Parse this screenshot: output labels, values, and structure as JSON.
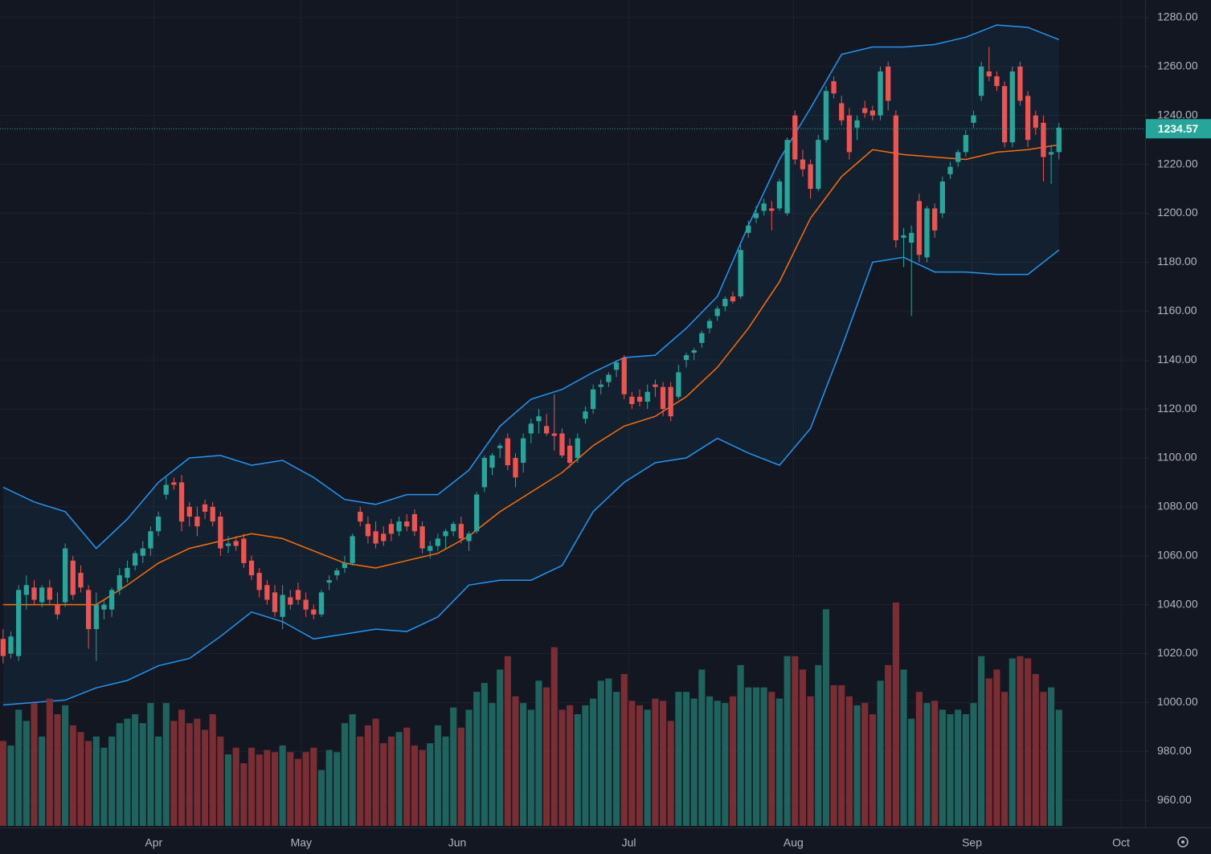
{
  "chart_data": {
    "type": "candlestick",
    "candles": [
      [
        1026,
        1030,
        1016,
        1019
      ],
      [
        1020,
        1029,
        1018,
        1027
      ],
      [
        1019,
        1048,
        1017,
        1046
      ],
      [
        1044,
        1052,
        1038,
        1048
      ],
      [
        1047,
        1050,
        1040,
        1042
      ],
      [
        1041,
        1048,
        1039,
        1047
      ],
      [
        1047,
        1050,
        1040,
        1042
      ],
      [
        1040,
        1045,
        1034,
        1036
      ],
      [
        1041,
        1065,
        1039,
        1063
      ],
      [
        1058,
        1060,
        1042,
        1044
      ],
      [
        1053,
        1056,
        1045,
        1047
      ],
      [
        1046,
        1048,
        1022,
        1030
      ],
      [
        1030,
        1045,
        1017,
        1040
      ],
      [
        1038,
        1042,
        1034,
        1040
      ],
      [
        1038,
        1047,
        1035,
        1046
      ],
      [
        1046,
        1055,
        1044,
        1052
      ],
      [
        1051,
        1058,
        1049,
        1055
      ],
      [
        1056,
        1062,
        1054,
        1061
      ],
      [
        1060,
        1066,
        1057,
        1063
      ],
      [
        1063,
        1072,
        1060,
        1070
      ],
      [
        1070,
        1078,
        1068,
        1076
      ],
      [
        1085,
        1092,
        1083,
        1089
      ],
      [
        1090,
        1092,
        1087,
        1089
      ],
      [
        1090,
        1093,
        1070,
        1074
      ],
      [
        1080,
        1082,
        1072,
        1076
      ],
      [
        1076,
        1080,
        1068,
        1072
      ],
      [
        1081,
        1083,
        1075,
        1078
      ],
      [
        1080,
        1082,
        1072,
        1074
      ],
      [
        1076,
        1078,
        1060,
        1063
      ],
      [
        1064,
        1068,
        1061,
        1065
      ],
      [
        1066,
        1068,
        1062,
        1064
      ],
      [
        1067,
        1069,
        1055,
        1057
      ],
      [
        1058,
        1060,
        1050,
        1052
      ],
      [
        1053,
        1055,
        1043,
        1046
      ],
      [
        1048,
        1050,
        1040,
        1042
      ],
      [
        1045,
        1048,
        1035,
        1037
      ],
      [
        1035,
        1048,
        1030,
        1044
      ],
      [
        1043,
        1046,
        1038,
        1040
      ],
      [
        1046,
        1049,
        1040,
        1042
      ],
      [
        1042,
        1045,
        1035,
        1038
      ],
      [
        1038,
        1040,
        1034,
        1036
      ],
      [
        1036,
        1046,
        1035,
        1045
      ],
      [
        1049,
        1052,
        1046,
        1050
      ],
      [
        1052,
        1055,
        1050,
        1054
      ],
      [
        1055,
        1060,
        1053,
        1057
      ],
      [
        1057,
        1069,
        1056,
        1068
      ],
      [
        1078,
        1080,
        1072,
        1074
      ],
      [
        1073,
        1076,
        1065,
        1068
      ],
      [
        1070,
        1074,
        1063,
        1065
      ],
      [
        1069,
        1072,
        1064,
        1066
      ],
      [
        1073,
        1075,
        1066,
        1069
      ],
      [
        1070,
        1076,
        1068,
        1074
      ],
      [
        1074,
        1077,
        1070,
        1072
      ],
      [
        1077,
        1079,
        1068,
        1070
      ],
      [
        1072,
        1074,
        1061,
        1063
      ],
      [
        1062,
        1066,
        1059,
        1064
      ],
      [
        1064,
        1069,
        1062,
        1067
      ],
      [
        1068,
        1071,
        1063,
        1070
      ],
      [
        1070,
        1074,
        1068,
        1073
      ],
      [
        1073,
        1076,
        1065,
        1067
      ],
      [
        1066,
        1070,
        1062,
        1069
      ],
      [
        1070,
        1086,
        1069,
        1085
      ],
      [
        1088,
        1101,
        1086,
        1100
      ],
      [
        1096,
        1102,
        1093,
        1101
      ],
      [
        1104,
        1106,
        1100,
        1105
      ],
      [
        1108,
        1110,
        1095,
        1097
      ],
      [
        1100,
        1102,
        1088,
        1092
      ],
      [
        1098,
        1110,
        1094,
        1108
      ],
      [
        1110,
        1116,
        1106,
        1114
      ],
      [
        1115,
        1120,
        1110,
        1117
      ],
      [
        1113,
        1118,
        1109,
        1110
      ],
      [
        1110,
        1126,
        1103,
        1109
      ],
      [
        1110,
        1112,
        1100,
        1101
      ],
      [
        1105,
        1108,
        1096,
        1098
      ],
      [
        1100,
        1110,
        1098,
        1108
      ],
      [
        1116,
        1121,
        1114,
        1119
      ],
      [
        1120,
        1130,
        1118,
        1128
      ],
      [
        1129,
        1132,
        1126,
        1130
      ],
      [
        1131,
        1135,
        1129,
        1134
      ],
      [
        1136,
        1140,
        1133,
        1139
      ],
      [
        1141,
        1142,
        1124,
        1126
      ],
      [
        1125,
        1127,
        1120,
        1122
      ],
      [
        1125,
        1128,
        1121,
        1123
      ],
      [
        1123,
        1130,
        1120,
        1127
      ],
      [
        1130,
        1132,
        1125,
        1129
      ],
      [
        1129,
        1131,
        1117,
        1120
      ],
      [
        1129,
        1131,
        1115,
        1117
      ],
      [
        1125,
        1138,
        1124,
        1135
      ],
      [
        1140,
        1143,
        1137,
        1142
      ],
      [
        1143,
        1145,
        1140,
        1144
      ],
      [
        1147,
        1152,
        1145,
        1151
      ],
      [
        1153,
        1157,
        1151,
        1156
      ],
      [
        1158,
        1162,
        1156,
        1161
      ],
      [
        1162,
        1166,
        1160,
        1165
      ],
      [
        1166,
        1168,
        1163,
        1164
      ],
      [
        1166,
        1187,
        1165,
        1185
      ],
      [
        1192,
        1197,
        1190,
        1195
      ],
      [
        1198,
        1203,
        1196,
        1200
      ],
      [
        1201,
        1206,
        1199,
        1204
      ],
      [
        1202,
        1205,
        1193,
        1201
      ],
      [
        1202,
        1214,
        1201,
        1213
      ],
      [
        1200,
        1231,
        1199,
        1230
      ],
      [
        1240,
        1242,
        1220,
        1222
      ],
      [
        1222,
        1226,
        1215,
        1218
      ],
      [
        1220,
        1222,
        1206,
        1210
      ],
      [
        1210,
        1232,
        1209,
        1230
      ],
      [
        1230,
        1252,
        1229,
        1250
      ],
      [
        1254,
        1256,
        1247,
        1249
      ],
      [
        1245,
        1248,
        1236,
        1238
      ],
      [
        1240,
        1243,
        1222,
        1225
      ],
      [
        1235,
        1240,
        1230,
        1238
      ],
      [
        1243,
        1246,
        1239,
        1241
      ],
      [
        1242,
        1244,
        1238,
        1240
      ],
      [
        1240,
        1260,
        1238,
        1258
      ],
      [
        1260,
        1262,
        1242,
        1246
      ],
      [
        1240,
        1242,
        1186,
        1189
      ],
      [
        1190,
        1194,
        1178,
        1191
      ],
      [
        1188,
        1195,
        1158,
        1192
      ],
      [
        1205,
        1208,
        1180,
        1183
      ],
      [
        1182,
        1203,
        1180,
        1202
      ],
      [
        1202,
        1204,
        1190,
        1193
      ],
      [
        1200,
        1215,
        1198,
        1213
      ],
      [
        1216,
        1221,
        1214,
        1219
      ],
      [
        1221,
        1226,
        1219,
        1225
      ],
      [
        1225,
        1234,
        1223,
        1232
      ],
      [
        1237,
        1242,
        1235,
        1240
      ],
      [
        1248,
        1262,
        1246,
        1260
      ],
      [
        1258,
        1268,
        1254,
        1256
      ],
      [
        1256,
        1258,
        1250,
        1252
      ],
      [
        1252,
        1254,
        1227,
        1229
      ],
      [
        1229,
        1260,
        1227,
        1258
      ],
      [
        1260,
        1262,
        1244,
        1246
      ],
      [
        1248,
        1250,
        1227,
        1230
      ],
      [
        1240,
        1242,
        1232,
        1235
      ],
      [
        1237,
        1240,
        1213,
        1223
      ],
      [
        1224,
        1228,
        1212,
        1225
      ],
      [
        1225,
        1237,
        1222,
        1235
      ]
    ],
    "volume": [
      38,
      36,
      52,
      47,
      55,
      40,
      57,
      50,
      54,
      45,
      42,
      38,
      40,
      35,
      40,
      46,
      48,
      50,
      46,
      55,
      40,
      55,
      47,
      52,
      46,
      48,
      43,
      50,
      40,
      32,
      35,
      28,
      35,
      32,
      34,
      33,
      36,
      33,
      30,
      33,
      35,
      25,
      34,
      33,
      46,
      50,
      40,
      45,
      48,
      37,
      40,
      42,
      44,
      36,
      34,
      37,
      45,
      40,
      53,
      44,
      52,
      60,
      64,
      55,
      70,
      76,
      58,
      55,
      52,
      65,
      62,
      80,
      52,
      54,
      50,
      54,
      57,
      65,
      66,
      60,
      68,
      56,
      54,
      52,
      57,
      56,
      47,
      60,
      60,
      57,
      70,
      58,
      56,
      55,
      58,
      72,
      62,
      62,
      62,
      60,
      57,
      76,
      76,
      70,
      58,
      72,
      97,
      63,
      63,
      58,
      54,
      55,
      50,
      65,
      72,
      100,
      70,
      48,
      60,
      55,
      56,
      52,
      50,
      52,
      50,
      55,
      76,
      66,
      70,
      60,
      75,
      76,
      75,
      68,
      60,
      62,
      52
    ],
    "volume_lim": [
      0,
      100
    ],
    "colors": {
      "up": "#26a69a",
      "down": "#ef5350",
      "volume_up": "#1f635e",
      "volume_down": "#7a2e33"
    },
    "bands": {
      "x": [
        0,
        4,
        8,
        12,
        16,
        20,
        24,
        28,
        32,
        36,
        40,
        44,
        48,
        52,
        56,
        60,
        64,
        68,
        72,
        76,
        80,
        84,
        88,
        92,
        96,
        100,
        104,
        108,
        112,
        116,
        120,
        124,
        128,
        132,
        136
      ],
      "upper": [
        1088,
        1082,
        1078,
        1063,
        1075,
        1090,
        1100,
        1101,
        1097,
        1099,
        1092,
        1083,
        1081,
        1085,
        1085,
        1095,
        1113,
        1124,
        1128,
        1135,
        1141,
        1142,
        1153,
        1166,
        1195,
        1222,
        1243,
        1265,
        1268,
        1268,
        1269,
        1272,
        1277,
        1276,
        1271
      ],
      "middle": [
        1040,
        1040,
        1040,
        1040,
        1048,
        1057,
        1063,
        1066,
        1069,
        1067,
        1062,
        1057,
        1055,
        1058,
        1061,
        1068,
        1078,
        1086,
        1094,
        1105,
        1113,
        1117,
        1125,
        1137,
        1153,
        1172,
        1198,
        1215,
        1226,
        1224,
        1223,
        1222,
        1225,
        1226,
        1228
      ],
      "lower": [
        999,
        1000,
        1001,
        1006,
        1009,
        1015,
        1018,
        1027,
        1037,
        1033,
        1026,
        1028,
        1030,
        1029,
        1035,
        1048,
        1050,
        1050,
        1056,
        1078,
        1090,
        1098,
        1100,
        1108,
        1102,
        1097,
        1112,
        1145,
        1180,
        1182,
        1176,
        1176,
        1175,
        1175,
        1185
      ],
      "band_color": "#2196f3",
      "middle_color": "#ff6d00"
    },
    "ylim": [
      948.9,
      1287.2
    ],
    "yticks": [
      {
        "value": 960,
        "label": "960.00"
      },
      {
        "value": 980,
        "label": "980.00"
      },
      {
        "value": 1000,
        "label": "1000.00"
      },
      {
        "value": 1020,
        "label": "1020.00"
      },
      {
        "value": 1040,
        "label": "1040.00"
      },
      {
        "value": 1060,
        "label": "1060.00"
      },
      {
        "value": 1080,
        "label": "1080.00"
      },
      {
        "value": 1100,
        "label": "1100.00"
      },
      {
        "value": 1120,
        "label": "1120.00"
      },
      {
        "value": 1140,
        "label": "1140.00"
      },
      {
        "value": 1160,
        "label": "1160.00"
      },
      {
        "value": 1180,
        "label": "1180.00"
      },
      {
        "value": 1200,
        "label": "1200.00"
      },
      {
        "value": 1220,
        "label": "1220.00"
      },
      {
        "value": 1240,
        "label": "1240.00"
      },
      {
        "value": 1260,
        "label": "1260.00"
      },
      {
        "value": 1280,
        "label": "1280.00"
      }
    ],
    "xlim": [
      -0.4,
      147.1
    ],
    "xticks": [
      {
        "value": 19.4,
        "label": "Apr"
      },
      {
        "value": 38.4,
        "label": "May"
      },
      {
        "value": 58.5,
        "label": "Jun"
      },
      {
        "value": 80.6,
        "label": "Jul"
      },
      {
        "value": 101.8,
        "label": "Aug"
      },
      {
        "value": 124.8,
        "label": "Sep"
      },
      {
        "value": 144.0,
        "label": "Oct"
      }
    ],
    "last_price": 1234.57,
    "grid": true
  }
}
